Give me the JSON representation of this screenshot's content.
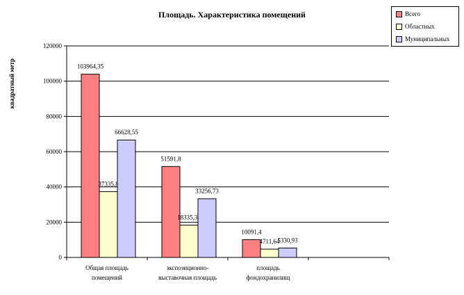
{
  "chart_data": {
    "type": "bar",
    "title": "Площадь. Характеристика помещений",
    "xlabel": "",
    "ylabel": "квадратный метр",
    "ylim": [
      0,
      120000
    ],
    "yticks": [
      0,
      20000,
      40000,
      60000,
      80000,
      100000,
      120000
    ],
    "grid": true,
    "legend_position": "top-right",
    "categories": [
      [
        "Общая площадь",
        "помещений"
      ],
      [
        "экспозиционно-",
        "выставочная площадь"
      ],
      [
        "площадь",
        "фондохранилищ"
      ],
      [
        "",
        ""
      ]
    ],
    "series": [
      {
        "name": "Всего",
        "color": "#ff8080",
        "values": [
          103964.35,
          51591.8,
          10091.4,
          null
        ],
        "labels": [
          "103964,35",
          "51591,8",
          "10091,4",
          ""
        ]
      },
      {
        "name": "Областных",
        "color": "#ffffcc",
        "values": [
          37335.8,
          18335.35,
          4711.64,
          null
        ],
        "labels": [
          "37335,8",
          "18335,35",
          "4711,64",
          ""
        ]
      },
      {
        "name": "Муниципальных",
        "color": "#ccccff",
        "values": [
          66628.55,
          33256.73,
          5330.93,
          null
        ],
        "labels": [
          "66628,55",
          "33256,73",
          "5330,93",
          ""
        ]
      }
    ]
  }
}
